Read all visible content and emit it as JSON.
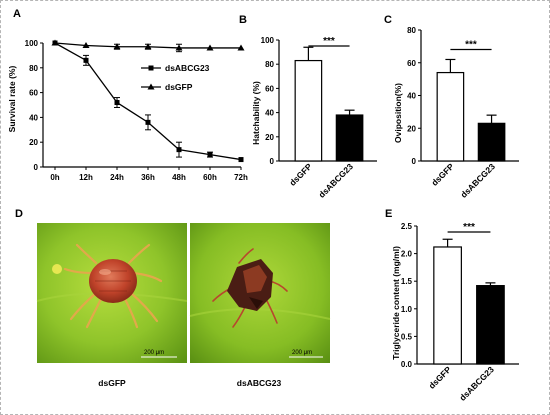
{
  "panels": {
    "A": {
      "label": "A"
    },
    "B": {
      "label": "B"
    },
    "C": {
      "label": "C"
    },
    "D": {
      "label": "D",
      "images": [
        {
          "caption": "dsGFP",
          "scale_bar": "200 μm"
        },
        {
          "caption": "dsABCG23",
          "scale_bar": "200 μm"
        }
      ]
    },
    "E": {
      "label": "E"
    }
  },
  "colors": {
    "bar_control": "#ffffff",
    "bar_treatment": "#000000",
    "leaf_green": "#7fb820",
    "mite_red": "#c2432a"
  },
  "chart_data": [
    {
      "panel": "A",
      "type": "line",
      "x": [
        "0h",
        "12h",
        "24h",
        "36h",
        "48h",
        "60h",
        "72h"
      ],
      "xticklabels": [
        "0h",
        "12h",
        "24h",
        "36h",
        "48h",
        "60h",
        "72h"
      ],
      "ylabel": "Survival rate (%)",
      "ylim": [
        0,
        100
      ],
      "yticks": [
        0,
        20,
        40,
        60,
        80,
        100
      ],
      "legend_position": "center-right",
      "series": [
        {
          "name": "dsABCG23",
          "marker": "square",
          "values": [
            100,
            86,
            52,
            36,
            14,
            10,
            6
          ],
          "errors": [
            0,
            4,
            4,
            6,
            6,
            2,
            0
          ]
        },
        {
          "name": "dsGFP",
          "marker": "triangle",
          "values": [
            100,
            98,
            97,
            97,
            96,
            96,
            96
          ],
          "errors": [
            0,
            0,
            2,
            2,
            3,
            0,
            0
          ]
        }
      ]
    },
    {
      "panel": "B",
      "type": "bar",
      "categories": [
        "dsGFP",
        "dsABCG23"
      ],
      "values": [
        83,
        38
      ],
      "errors": [
        11,
        4
      ],
      "ylabel": "Hatchability (%)",
      "ylim": [
        0,
        100
      ],
      "yticks": [
        0,
        20,
        40,
        60,
        80,
        100
      ],
      "significance": "***"
    },
    {
      "panel": "C",
      "type": "bar",
      "categories": [
        "dsGFP",
        "dsABCG23"
      ],
      "values": [
        54,
        23
      ],
      "errors": [
        8,
        5
      ],
      "ylabel": "Oviposition(%)",
      "ylim": [
        0,
        80
      ],
      "yticks": [
        0,
        20,
        40,
        60,
        80
      ],
      "significance": "***"
    },
    {
      "panel": "E",
      "type": "bar",
      "categories": [
        "dsGFP",
        "dsABCG23"
      ],
      "values": [
        2.12,
        1.42
      ],
      "errors": [
        0.14,
        0.05
      ],
      "ylabel": "Triglyceride content (mg/ml)",
      "ylim": [
        0,
        2.5
      ],
      "yticks": [
        "0.0",
        "0.5",
        "1.0",
        "1.5",
        "2.0",
        "2.5"
      ],
      "significance": "***"
    }
  ]
}
